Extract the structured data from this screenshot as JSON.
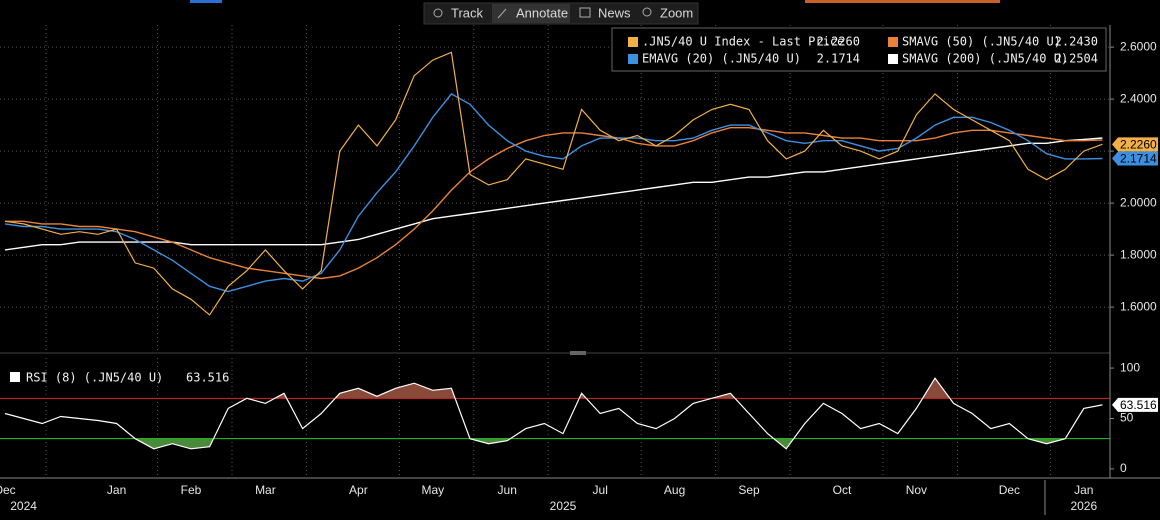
{
  "toolbar": [
    "Track",
    "Annotate",
    "News",
    "Zoom"
  ],
  "chart_data": {
    "type": "line",
    "categories": [
      "Dec",
      null,
      null,
      null,
      null,
      null,
      "Jan",
      null,
      null,
      null,
      "Feb",
      null,
      null,
      null,
      "Mar",
      null,
      null,
      null,
      null,
      "Apr",
      null,
      null,
      null,
      "May",
      null,
      null,
      null,
      "Jun",
      null,
      null,
      null,
      null,
      "Jul",
      null,
      null,
      null,
      "Aug",
      null,
      null,
      null,
      "Sep",
      null,
      null,
      null,
      null,
      "Oct",
      null,
      null,
      null,
      "Nov",
      null,
      null,
      null,
      null,
      "Dec",
      null,
      null,
      null,
      "Jan",
      null
    ],
    "year_labels": [
      null,
      "2024",
      null,
      null,
      null,
      null,
      null,
      null,
      null,
      null,
      null,
      null,
      null,
      null,
      null,
      null,
      null,
      null,
      null,
      null,
      null,
      null,
      null,
      null,
      null,
      null,
      null,
      null,
      null,
      null,
      "2025",
      null,
      null,
      null,
      null,
      null,
      null,
      null,
      null,
      null,
      null,
      null,
      null,
      null,
      null,
      null,
      null,
      null,
      null,
      null,
      null,
      null,
      null,
      null,
      null,
      null,
      null,
      null,
      "2026",
      null
    ],
    "series": [
      {
        "name": ".JN5/40 U Index - Last Price",
        "color": "#f2b046",
        "last_label": "2.2260",
        "axis_tag": true,
        "values": [
          1.93,
          1.92,
          1.9,
          1.88,
          1.89,
          1.88,
          1.9,
          1.77,
          1.75,
          1.67,
          1.63,
          1.57,
          1.68,
          1.74,
          1.82,
          1.74,
          1.67,
          1.74,
          2.2,
          2.3,
          2.22,
          2.32,
          2.49,
          2.55,
          2.58,
          2.11,
          2.07,
          2.09,
          2.17,
          2.15,
          2.13,
          2.36,
          2.28,
          2.24,
          2.26,
          2.22,
          2.26,
          2.32,
          2.36,
          2.38,
          2.36,
          2.24,
          2.17,
          2.2,
          2.28,
          2.22,
          2.2,
          2.17,
          2.2,
          2.34,
          2.42,
          2.36,
          2.32,
          2.28,
          2.24,
          2.13,
          2.09,
          2.13,
          2.2,
          2.226
        ]
      },
      {
        "name": "SMAVG (50) (.JN5/40 U)",
        "color": "#e8823a",
        "last_label": "2.2430",
        "axis_tag": false,
        "values": [
          1.93,
          1.93,
          1.92,
          1.92,
          1.91,
          1.91,
          1.9,
          1.89,
          1.87,
          1.85,
          1.82,
          1.79,
          1.77,
          1.75,
          1.74,
          1.73,
          1.72,
          1.71,
          1.72,
          1.75,
          1.79,
          1.84,
          1.9,
          1.97,
          2.05,
          2.12,
          2.17,
          2.21,
          2.24,
          2.26,
          2.27,
          2.27,
          2.26,
          2.25,
          2.23,
          2.22,
          2.22,
          2.24,
          2.27,
          2.29,
          2.29,
          2.28,
          2.27,
          2.27,
          2.26,
          2.25,
          2.25,
          2.24,
          2.24,
          2.24,
          2.25,
          2.27,
          2.28,
          2.28,
          2.27,
          2.26,
          2.25,
          2.24,
          2.24,
          2.243
        ]
      },
      {
        "name": "EMAVG (20) (.JN5/40 U)",
        "color": "#3d8fe0",
        "last_label": "2.1714",
        "axis_tag": true,
        "values": [
          1.92,
          1.91,
          1.91,
          1.9,
          1.9,
          1.9,
          1.89,
          1.86,
          1.82,
          1.78,
          1.73,
          1.68,
          1.66,
          1.68,
          1.7,
          1.71,
          1.7,
          1.73,
          1.82,
          1.95,
          2.04,
          2.12,
          2.22,
          2.33,
          2.42,
          2.38,
          2.3,
          2.24,
          2.2,
          2.18,
          2.17,
          2.22,
          2.25,
          2.25,
          2.25,
          2.24,
          2.24,
          2.25,
          2.28,
          2.3,
          2.3,
          2.27,
          2.24,
          2.23,
          2.24,
          2.24,
          2.22,
          2.2,
          2.21,
          2.25,
          2.3,
          2.33,
          2.33,
          2.31,
          2.28,
          2.24,
          2.19,
          2.17,
          2.17,
          2.1714
        ]
      },
      {
        "name": "SMAVG (200) (.JN5/40 U)",
        "color": "#ffffff",
        "last_label": "2.2504",
        "axis_tag": false,
        "values": [
          1.82,
          1.83,
          1.84,
          1.84,
          1.85,
          1.85,
          1.85,
          1.85,
          1.85,
          1.85,
          1.84,
          1.84,
          1.84,
          1.84,
          1.84,
          1.84,
          1.84,
          1.84,
          1.85,
          1.86,
          1.88,
          1.9,
          1.92,
          1.94,
          1.95,
          1.96,
          1.97,
          1.98,
          1.99,
          2.0,
          2.01,
          2.02,
          2.03,
          2.04,
          2.05,
          2.06,
          2.07,
          2.08,
          2.08,
          2.09,
          2.1,
          2.1,
          2.11,
          2.12,
          2.12,
          2.13,
          2.14,
          2.15,
          2.16,
          2.17,
          2.18,
          2.19,
          2.2,
          2.21,
          2.22,
          2.23,
          2.23,
          2.24,
          2.245,
          2.2504
        ]
      }
    ],
    "ylim": [
      1.435,
      2.685
    ],
    "yticks": [
      {
        "value": 1.6,
        "label": "1.6000"
      },
      {
        "value": 1.8,
        "label": "1.8000"
      },
      {
        "value": 2.0,
        "label": "2.0000"
      },
      {
        "value": 2.2,
        "label": "2.2000"
      },
      {
        "value": 2.4,
        "label": "2.4000"
      },
      {
        "value": 2.6,
        "label": "2.6000"
      }
    ],
    "grid": true,
    "rsi": {
      "name": "RSI (8) (.JN5/40 U)",
      "color": "#ffffff",
      "last_label": "63.516",
      "values": [
        55,
        50,
        45,
        52,
        50,
        48,
        45,
        30,
        20,
        25,
        20,
        22,
        60,
        70,
        65,
        75,
        40,
        55,
        75,
        80,
        72,
        80,
        85,
        78,
        80,
        30,
        25,
        28,
        40,
        45,
        35,
        75,
        55,
        60,
        45,
        40,
        50,
        65,
        70,
        75,
        55,
        35,
        20,
        45,
        65,
        55,
        40,
        45,
        35,
        60,
        90,
        65,
        55,
        40,
        45,
        30,
        25,
        30,
        60,
        63.516
      ],
      "ylim": [
        -9,
        110
      ],
      "yticks": [
        0,
        50,
        100
      ],
      "upper": 70,
      "lower": 30,
      "upper_color": "#d22",
      "lower_color": "#2c2",
      "upper_fill": "#8a4a3a",
      "lower_fill": "#4a8a3a"
    }
  }
}
